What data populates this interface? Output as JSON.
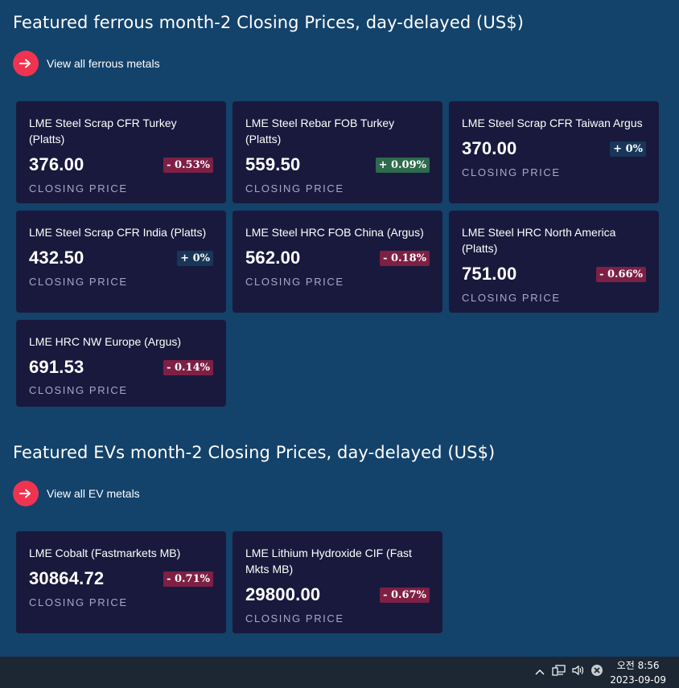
{
  "ferrous": {
    "title": "Featured ferrous month-2 Closing Prices, day-delayed (US$)",
    "link": "View all ferrous metals",
    "cards": [
      {
        "name": "LME Steel Scrap CFR Turkey (Platts)",
        "price": "376.00",
        "change": "- 0.53%",
        "label": "CLOSING PRICE"
      },
      {
        "name": "LME Steel Rebar FOB Turkey (Platts)",
        "price": "559.50",
        "change": "+ 0.09%",
        "label": "CLOSING PRICE"
      },
      {
        "name": "LME Steel Scrap CFR Taiwan Argus",
        "price": "370.00",
        "change": "+ 0%",
        "label": "CLOSING PRICE"
      },
      {
        "name": "LME Steel Scrap CFR India (Platts)",
        "price": "432.50",
        "change": "+ 0%",
        "label": "CLOSING PRICE"
      },
      {
        "name": "LME Steel HRC FOB China (Argus)",
        "price": "562.00",
        "change": "- 0.18%",
        "label": "CLOSING PRICE"
      },
      {
        "name": "LME Steel HRC North America (Platts)",
        "price": "751.00",
        "change": "- 0.66%",
        "label": "CLOSING PRICE"
      },
      {
        "name": "LME HRC NW Europe (Argus)",
        "price": "691.53",
        "change": "- 0.14%",
        "label": "CLOSING PRICE"
      }
    ]
  },
  "evs": {
    "title": "Featured EVs month-2 Closing Prices, day-delayed (US$)",
    "link": "View all EV metals",
    "cards": [
      {
        "name": "LME Cobalt (Fastmarkets MB)",
        "price": "30864.72",
        "change": "- 0.71%",
        "label": "CLOSING PRICE"
      },
      {
        "name": "LME Lithium Hydroxide CIF (Fast Mkts MB)",
        "price": "29800.00",
        "change": "- 0.67%",
        "label": "CLOSING PRICE"
      }
    ]
  },
  "colors": {
    "background": "#13426b",
    "card": "#19193d",
    "accent": "#f0344f",
    "negative": "#7d2044",
    "positive": "#2d6b4c",
    "neutral": "#173659"
  },
  "taskbar": {
    "icons": [
      "chevron-up-icon",
      "network-icon",
      "volume-icon",
      "close-circle-icon"
    ],
    "time": "오전 8:56",
    "date": "2023-09-09"
  }
}
